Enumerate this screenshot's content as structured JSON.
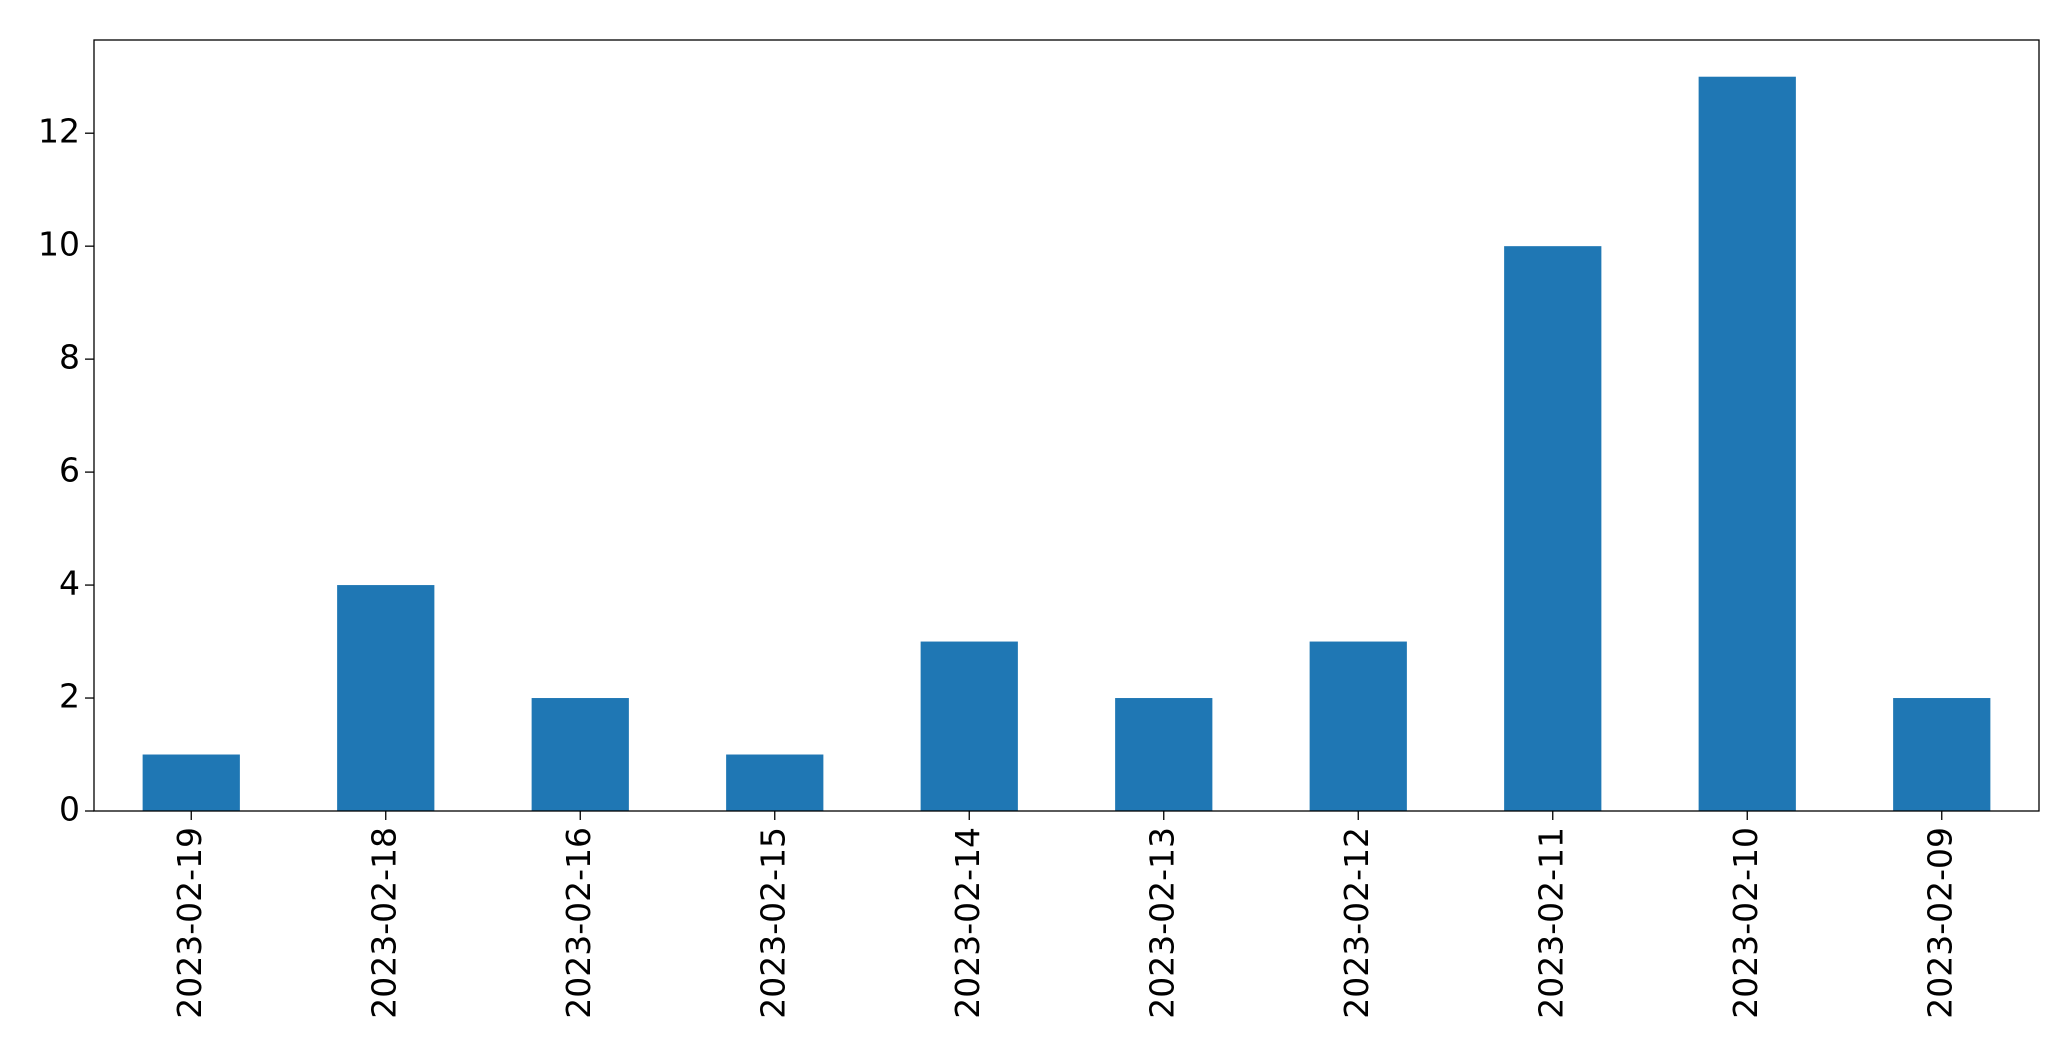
{
  "chart_data": {
    "type": "bar",
    "categories": [
      "2023-02-19",
      "2023-02-18",
      "2023-02-16",
      "2023-02-15",
      "2023-02-14",
      "2023-02-13",
      "2023-02-12",
      "2023-02-11",
      "2023-02-10",
      "2023-02-09"
    ],
    "values": [
      1,
      4,
      2,
      1,
      3,
      2,
      3,
      10,
      13,
      2
    ],
    "color": "#1f77b4",
    "ylim": [
      0,
      13.65
    ],
    "yticks": [
      0,
      2,
      4,
      6,
      8,
      10,
      12
    ],
    "grid": false
  }
}
